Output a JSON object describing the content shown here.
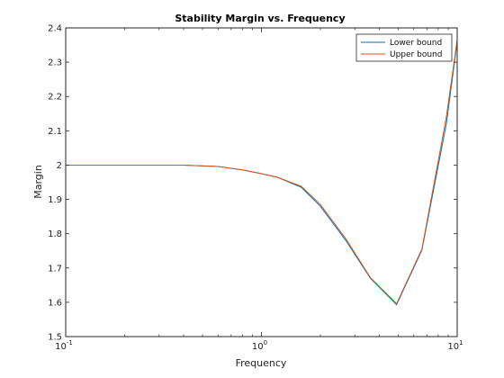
{
  "chart_data": {
    "type": "line",
    "title": "Stability Margin vs. Frequency",
    "xlabel": "Frequency",
    "ylabel": "Margin",
    "xscale": "log",
    "xlim": [
      0.1,
      10
    ],
    "ylim": [
      1.5,
      2.4
    ],
    "xticks": [
      {
        "base": "10",
        "exp": "-1",
        "value": 0.1
      },
      {
        "base": "10",
        "exp": "0",
        "value": 1
      },
      {
        "base": "10",
        "exp": "1",
        "value": 10
      }
    ],
    "yticks": [
      "1.5",
      "1.6",
      "1.7",
      "1.8",
      "1.9",
      "2",
      "2.1",
      "2.2",
      "2.3",
      "2.4"
    ],
    "legend_position": "top-right",
    "grid": false,
    "series": [
      {
        "name": "Lower bound",
        "color": "#0072BD",
        "x": [
          0.1,
          0.2,
          0.4,
          0.6,
          0.8,
          1.0,
          1.2,
          1.6,
          2.0,
          2.7,
          3.6,
          4.9,
          6.6,
          8.8,
          10
        ],
        "y": [
          2.0,
          2.0,
          2.0,
          1.996,
          1.986,
          1.975,
          1.965,
          1.935,
          1.88,
          1.78,
          1.67,
          1.593,
          1.752,
          2.12,
          2.36
        ]
      },
      {
        "name": "Upper bound",
        "color": "#D95319",
        "x": [
          0.1,
          0.2,
          0.4,
          0.6,
          0.8,
          1.0,
          1.2,
          1.6,
          2.0,
          2.7,
          3.6,
          4.9,
          6.6,
          8.8,
          10
        ],
        "y": [
          2.0,
          2.0,
          2.0,
          1.996,
          1.986,
          1.975,
          1.965,
          1.938,
          1.885,
          1.785,
          1.672,
          1.596,
          1.755,
          2.14,
          2.365
        ]
      }
    ]
  }
}
